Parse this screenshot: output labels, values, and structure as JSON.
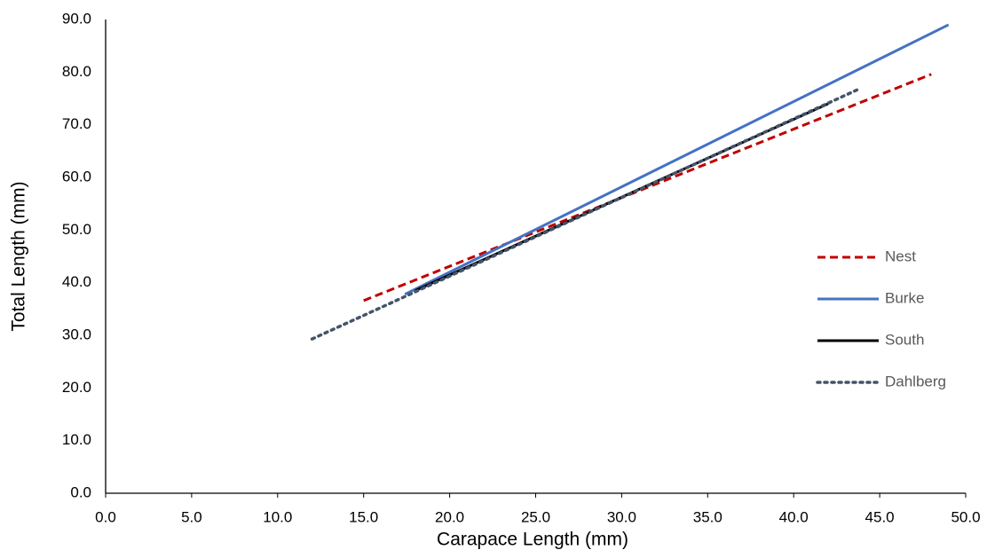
{
  "chart_data": {
    "type": "line",
    "x_label": "Carapace Length (mm)",
    "y_label": "Total Length (mm)",
    "xlim": [
      0,
      50
    ],
    "ylim": [
      0,
      90
    ],
    "xticks": [
      {
        "value": 0,
        "label": "0.0"
      },
      {
        "value": 5,
        "label": "5.0"
      },
      {
        "value": 10,
        "label": "10.0"
      },
      {
        "value": 15,
        "label": "15.0"
      },
      {
        "value": 20,
        "label": "20.0"
      },
      {
        "value": 25,
        "label": "25.0"
      },
      {
        "value": 30,
        "label": "30.0"
      },
      {
        "value": 35,
        "label": "35.0"
      },
      {
        "value": 40,
        "label": "40.0"
      },
      {
        "value": 45,
        "label": "45.0"
      },
      {
        "value": 50,
        "label": "50.0"
      }
    ],
    "yticks": [
      {
        "value": 0,
        "label": "0.0"
      },
      {
        "value": 10,
        "label": "10.0"
      },
      {
        "value": 20,
        "label": "20.0"
      },
      {
        "value": 30,
        "label": "30.0"
      },
      {
        "value": 40,
        "label": "40.0"
      },
      {
        "value": 50,
        "label": "50.0"
      },
      {
        "value": 60,
        "label": "60.0"
      },
      {
        "value": 70,
        "label": "70.0"
      },
      {
        "value": 80,
        "label": "80.0"
      },
      {
        "value": 90,
        "label": "90.0"
      }
    ],
    "grid": false,
    "legend": "right",
    "series": [
      {
        "name": "Nest",
        "color": "#c00000",
        "dash": "dashed",
        "x": [
          15.0,
          48.0
        ],
        "values": [
          36.6,
          79.6
        ]
      },
      {
        "name": "Burke",
        "color": "#4472c4",
        "dash": "solid",
        "x": [
          17.4,
          49.0
        ],
        "values": [
          37.8,
          89.0
        ]
      },
      {
        "name": "South",
        "color": "#000000",
        "dash": "solid",
        "x": [
          18.0,
          42.0
        ],
        "values": [
          38.5,
          74.0
        ]
      },
      {
        "name": "Dahlberg",
        "color": "#44546a",
        "dash": "dotted",
        "x": [
          12.0,
          43.8
        ],
        "values": [
          29.3,
          76.8
        ]
      }
    ]
  }
}
